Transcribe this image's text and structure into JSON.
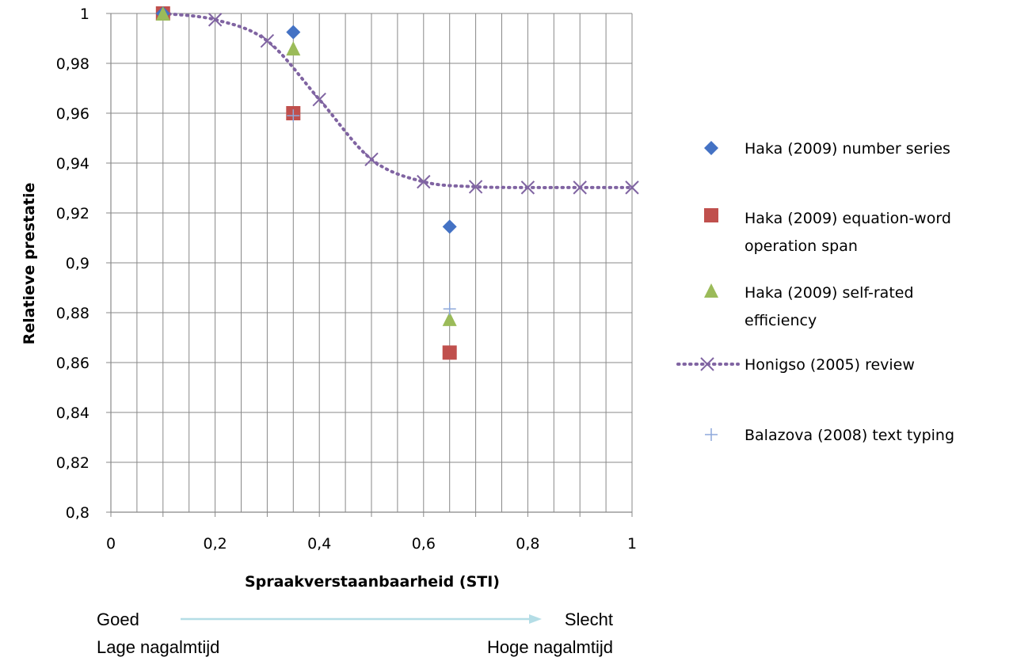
{
  "chart_data": {
    "type": "scatter",
    "title": "",
    "xlabel": "Spraakverstaanbaarheid  (STI)",
    "ylabel": "Relatieve prestatie",
    "xlim": [
      0,
      1
    ],
    "ylim": [
      0.8,
      1
    ],
    "x_ticks": [
      "0",
      "0,2",
      "0,4",
      "0,6",
      "0,8",
      "1"
    ],
    "y_ticks": [
      "1",
      "0,98",
      "0,96",
      "0,94",
      "0,92",
      "0,9",
      "0,88",
      "0,86",
      "0,84",
      "0,82",
      "0,8"
    ],
    "grid": true,
    "legend_position": "right",
    "series": [
      {
        "name": "Haka (2009) number series",
        "marker": "diamond",
        "color": "#4472C4",
        "points": [
          [
            0.1,
            1.0
          ],
          [
            0.35,
            0.9925
          ],
          [
            0.65,
            0.9145
          ]
        ]
      },
      {
        "name": "Haka (2009) equation-word operation span",
        "marker": "square",
        "color": "#C0504D",
        "points": [
          [
            0.1,
            1.0
          ],
          [
            0.35,
            0.96
          ],
          [
            0.65,
            0.864
          ]
        ]
      },
      {
        "name": "Haka (2009) self-rated efficiency",
        "marker": "triangle",
        "color": "#9BBB59",
        "points": [
          [
            0.1,
            1.0
          ],
          [
            0.35,
            0.986
          ],
          [
            0.65,
            0.8775
          ]
        ]
      },
      {
        "name": "Honigso (2005) review",
        "marker": "x-dotted-line",
        "color": "#8064A2",
        "points": [
          [
            0.1,
            1.0
          ],
          [
            0.2,
            0.9975
          ],
          [
            0.3,
            0.989
          ],
          [
            0.4,
            0.9655
          ],
          [
            0.5,
            0.9415
          ],
          [
            0.6,
            0.9325
          ],
          [
            0.7,
            0.9305
          ],
          [
            0.8,
            0.9302
          ],
          [
            0.9,
            0.9302
          ],
          [
            1.0,
            0.9302
          ]
        ]
      },
      {
        "name": "Balazova (2008) text typing",
        "marker": "plus",
        "color": "#8EA9DB",
        "points": [
          [
            0.35,
            0.959
          ],
          [
            0.65,
            0.8815
          ]
        ]
      }
    ]
  },
  "legend": {
    "entries": [
      [
        "Haka (2009) number series"
      ],
      [
        "Haka (2009) equation-word",
        "operation span"
      ],
      [
        "Haka (2009) self-rated",
        "efficiency"
      ],
      [
        "Honigso (2005) review"
      ],
      [
        "Balazova (2008) text typing"
      ]
    ]
  },
  "annotation": {
    "left_top": "Goed",
    "left_bottom": "Lage nagalmtijd",
    "right_top": "Slecht",
    "right_bottom": "Hoge nagalmtijd",
    "arrow_color": "#B4DDE6"
  }
}
